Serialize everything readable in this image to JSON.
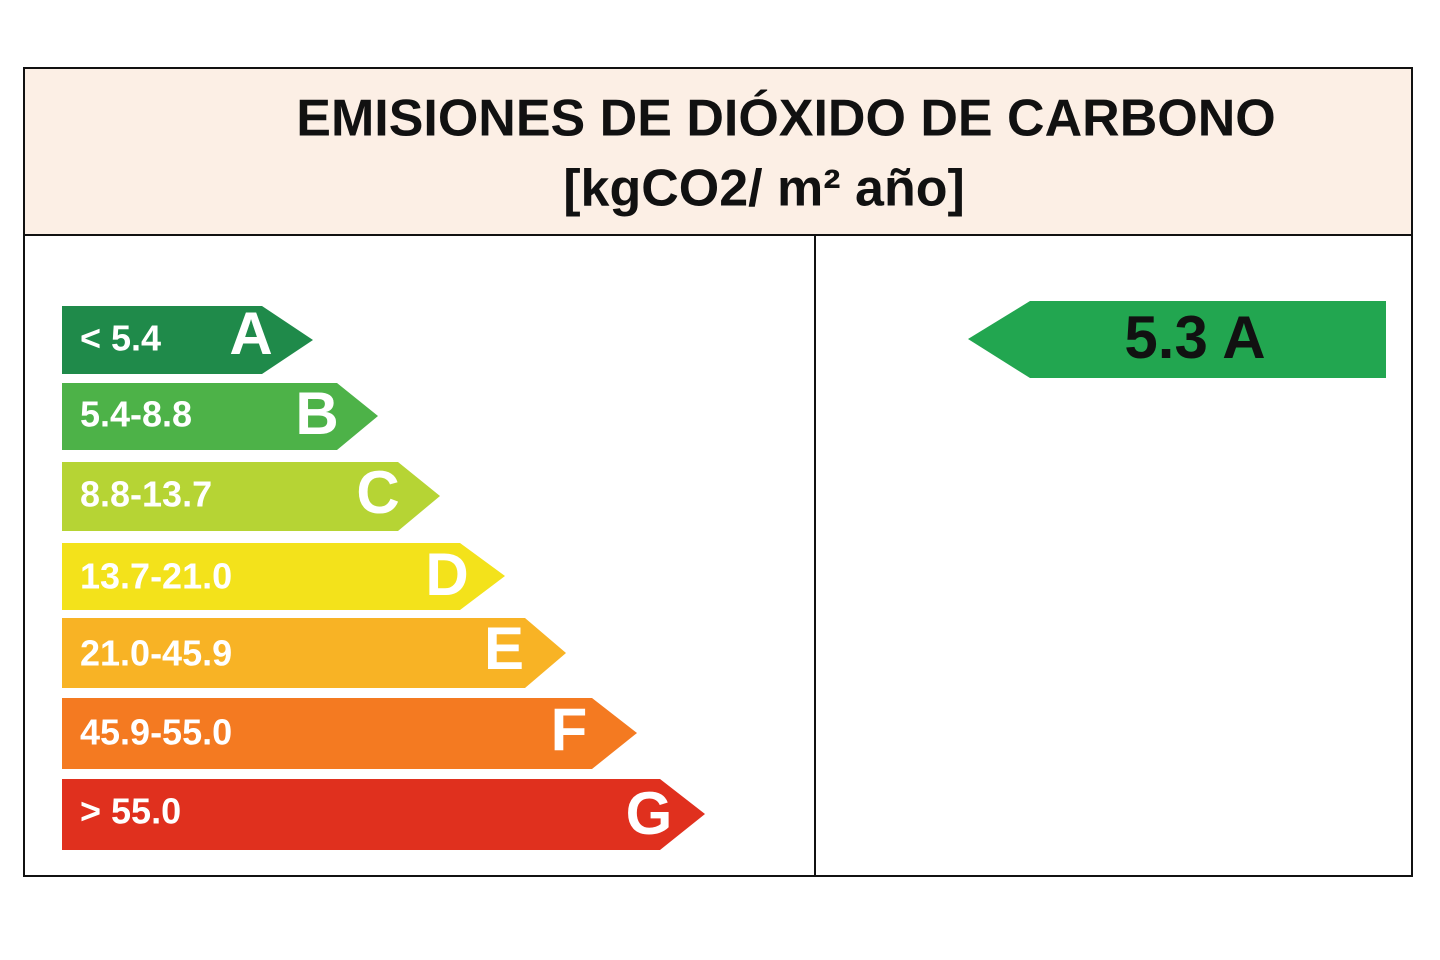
{
  "header": {
    "title": "EMISIONES DE DIÓXIDO DE CARBONO",
    "subtitle": "[kgCO2/  m² año]"
  },
  "ratings": [
    {
      "range": "< 5.4",
      "letter": "A"
    },
    {
      "range": "5.4-8.8",
      "letter": "B"
    },
    {
      "range": "8.8-13.7",
      "letter": "C"
    },
    {
      "range": "13.7-21.0",
      "letter": "D"
    },
    {
      "range": "21.0-45.9",
      "letter": "E"
    },
    {
      "range": "45.9-55.0",
      "letter": "F"
    },
    {
      "range": "> 55.0",
      "letter": "G"
    }
  ],
  "result": "5.3 A"
}
